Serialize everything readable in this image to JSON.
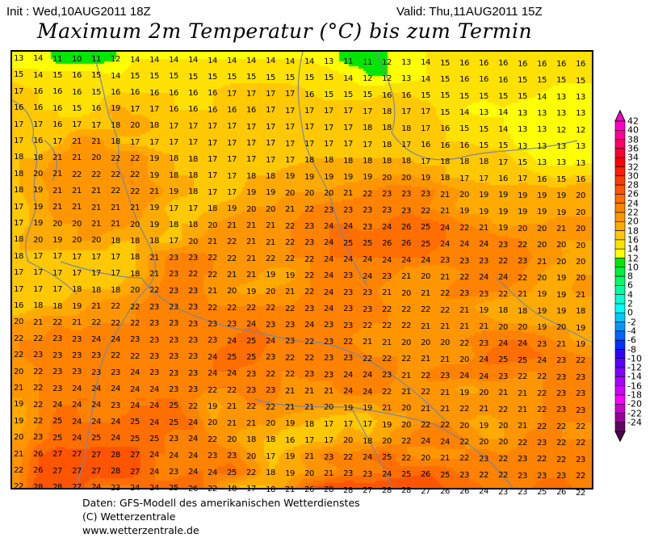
{
  "header": {
    "init": "Init : Wed,10AUG2011 18Z",
    "valid": "Valid: Thu,11AUG2011 15Z",
    "title": "Maximum 2m Temperatur (°C) bis zum Termin"
  },
  "map": {
    "field": "Maximum 2m temperature (°C)",
    "coastline_color": "#7a86a0",
    "grid_values": [
      [
        13,
        14,
        11,
        10,
        11,
        12,
        14,
        14,
        14,
        14,
        14,
        14,
        14,
        14,
        14,
        14,
        13,
        11,
        11,
        12,
        13,
        14,
        15,
        16,
        16,
        16,
        16,
        16,
        16,
        16
      ],
      [
        15,
        14,
        15,
        16,
        15,
        14,
        15,
        15,
        15,
        15,
        15,
        15,
        15,
        15,
        15,
        15,
        15,
        14,
        12,
        12,
        13,
        14,
        15,
        16,
        16,
        16,
        15,
        15,
        15,
        15
      ],
      [
        17,
        16,
        16,
        16,
        15,
        16,
        16,
        16,
        16,
        16,
        16,
        17,
        17,
        17,
        17,
        16,
        15,
        15,
        15,
        16,
        16,
        15,
        15,
        15,
        15,
        15,
        15,
        14,
        13,
        13
      ],
      [
        16,
        16,
        16,
        15,
        16,
        19,
        17,
        17,
        16,
        16,
        16,
        16,
        16,
        17,
        17,
        17,
        17,
        17,
        17,
        18,
        17,
        17,
        15,
        14,
        13,
        14,
        13,
        13,
        13,
        13
      ],
      [
        17,
        17,
        16,
        17,
        17,
        18,
        20,
        18,
        17,
        17,
        17,
        17,
        17,
        17,
        17,
        17,
        17,
        17,
        18,
        18,
        18,
        17,
        16,
        15,
        15,
        14,
        13,
        13,
        12,
        12
      ],
      [
        17,
        16,
        17,
        21,
        21,
        18,
        17,
        17,
        17,
        17,
        17,
        17,
        17,
        17,
        17,
        17,
        17,
        17,
        17,
        18,
        17,
        16,
        16,
        16,
        15,
        15,
        13,
        13,
        13,
        13
      ],
      [
        18,
        18,
        21,
        21,
        20,
        22,
        22,
        19,
        18,
        18,
        17,
        17,
        17,
        17,
        17,
        18,
        18,
        18,
        18,
        18,
        18,
        17,
        18,
        18,
        18,
        17,
        15,
        13,
        13,
        13
      ],
      [
        18,
        20,
        21,
        22,
        22,
        22,
        22,
        19,
        18,
        18,
        17,
        17,
        18,
        18,
        19,
        19,
        19,
        19,
        19,
        20,
        20,
        19,
        18,
        17,
        17,
        16,
        17,
        16,
        15,
        16
      ],
      [
        18,
        19,
        21,
        21,
        21,
        22,
        22,
        21,
        19,
        18,
        17,
        17,
        19,
        19,
        20,
        20,
        20,
        21,
        22,
        23,
        23,
        23,
        21,
        20,
        19,
        19,
        19,
        19,
        19,
        20
      ],
      [
        17,
        19,
        21,
        21,
        21,
        21,
        21,
        19,
        17,
        17,
        18,
        19,
        20,
        20,
        21,
        22,
        23,
        23,
        23,
        23,
        23,
        22,
        21,
        19,
        19,
        19,
        19,
        19,
        19,
        20
      ],
      [
        17,
        19,
        20,
        20,
        21,
        21,
        20,
        19,
        18,
        18,
        20,
        21,
        21,
        21,
        22,
        23,
        24,
        24,
        23,
        24,
        26,
        25,
        24,
        22,
        21,
        19,
        20,
        20,
        21,
        20
      ],
      [
        18,
        20,
        19,
        20,
        20,
        18,
        18,
        18,
        17,
        20,
        21,
        22,
        21,
        21,
        22,
        23,
        24,
        25,
        25,
        26,
        26,
        25,
        24,
        24,
        24,
        23,
        22,
        20,
        20,
        20
      ],
      [
        18,
        17,
        17,
        17,
        17,
        17,
        18,
        21,
        23,
        23,
        22,
        22,
        21,
        22,
        22,
        22,
        24,
        24,
        24,
        24,
        24,
        24,
        23,
        23,
        23,
        22,
        23,
        21,
        20,
        20
      ],
      [
        17,
        17,
        17,
        17,
        17,
        17,
        18,
        21,
        23,
        22,
        22,
        21,
        21,
        19,
        19,
        22,
        24,
        23,
        24,
        23,
        21,
        20,
        21,
        22,
        24,
        24,
        22,
        20,
        19,
        20
      ],
      [
        17,
        17,
        17,
        18,
        18,
        18,
        20,
        22,
        23,
        23,
        21,
        20,
        19,
        20,
        21,
        22,
        24,
        23,
        23,
        21,
        20,
        21,
        22,
        23,
        23,
        22,
        21,
        19,
        19,
        21
      ],
      [
        16,
        18,
        18,
        19,
        21,
        22,
        22,
        23,
        23,
        23,
        22,
        22,
        22,
        22,
        22,
        23,
        24,
        23,
        23,
        22,
        22,
        22,
        22,
        21,
        19,
        18,
        18,
        19,
        19,
        18
      ],
      [
        20,
        21,
        22,
        21,
        22,
        22,
        22,
        23,
        23,
        23,
        23,
        23,
        24,
        23,
        23,
        24,
        23,
        23,
        22,
        22,
        22,
        21,
        21,
        21,
        21,
        20,
        20,
        19,
        20,
        19
      ],
      [
        22,
        22,
        23,
        23,
        24,
        24,
        23,
        23,
        23,
        23,
        23,
        24,
        25,
        24,
        23,
        22,
        23,
        22,
        21,
        21,
        20,
        20,
        20,
        22,
        23,
        24,
        24,
        23,
        21,
        19
      ],
      [
        22,
        23,
        23,
        23,
        23,
        22,
        22,
        23,
        23,
        23,
        24,
        25,
        25,
        23,
        22,
        22,
        23,
        23,
        22,
        22,
        22,
        21,
        21,
        20,
        24,
        25,
        25,
        24,
        23,
        22
      ],
      [
        20,
        22,
        23,
        23,
        23,
        23,
        24,
        23,
        23,
        23,
        24,
        24,
        23,
        22,
        22,
        23,
        23,
        24,
        24,
        23,
        21,
        22,
        23,
        24,
        24,
        23,
        22,
        22,
        23,
        23
      ],
      [
        21,
        22,
        23,
        24,
        24,
        24,
        24,
        24,
        23,
        23,
        22,
        22,
        23,
        23,
        21,
        21,
        21,
        24,
        24,
        22,
        21,
        22,
        21,
        19,
        20,
        21,
        21,
        22,
        23,
        23
      ],
      [
        19,
        22,
        24,
        24,
        24,
        23,
        24,
        24,
        25,
        22,
        19,
        21,
        22,
        22,
        21,
        21,
        20,
        19,
        19,
        21,
        20,
        21,
        21,
        22,
        21,
        22,
        21,
        22,
        23,
        23
      ],
      [
        19,
        22,
        25,
        24,
        24,
        24,
        25,
        24,
        25,
        24,
        20,
        21,
        21,
        20,
        19,
        18,
        17,
        17,
        17,
        19,
        20,
        22,
        22,
        20,
        19,
        20,
        21,
        22,
        22,
        22
      ],
      [
        20,
        23,
        25,
        24,
        25,
        24,
        25,
        25,
        23,
        24,
        22,
        20,
        18,
        18,
        16,
        17,
        17,
        20,
        18,
        20,
        22,
        24,
        24,
        22,
        20,
        20,
        22,
        23,
        22,
        22
      ],
      [
        21,
        26,
        27,
        27,
        27,
        28,
        27,
        24,
        24,
        24,
        23,
        23,
        20,
        17,
        19,
        21,
        23,
        22,
        24,
        25,
        22,
        20,
        21,
        22,
        23,
        22,
        23,
        22,
        22,
        23
      ],
      [
        22,
        26,
        27,
        27,
        27,
        28,
        27,
        24,
        23,
        24,
        24,
        25,
        22,
        18,
        19,
        20,
        21,
        23,
        23,
        24,
        25,
        26,
        25,
        23,
        22,
        22,
        23,
        23,
        23,
        22
      ],
      [
        22,
        28,
        28,
        27,
        24,
        23,
        24,
        24,
        25,
        26,
        22,
        18,
        17,
        18,
        21,
        26,
        28,
        28,
        27,
        28,
        28,
        27,
        26,
        26,
        24,
        23,
        23,
        25,
        26,
        22
      ]
    ]
  },
  "legend": {
    "labels": [
      "42",
      "40",
      "38",
      "36",
      "34",
      "32",
      "30",
      "28",
      "26",
      "24",
      "22",
      "20",
      "18",
      "16",
      "14",
      "12",
      "10",
      "8",
      "6",
      "4",
      "2",
      "0",
      "-2",
      "-4",
      "-6",
      "-8",
      "-10",
      "-12",
      "-14",
      "-16",
      "-18",
      "-20",
      "-22",
      "-24"
    ],
    "colors": [
      "#ff00c8",
      "#ff0096",
      "#ff0064",
      "#ff0032",
      "#ff0000",
      "#ff1e00",
      "#ff3c00",
      "#ff5500",
      "#ff6e00",
      "#ff8200",
      "#ff9600",
      "#ffaa00",
      "#ffc800",
      "#ffe100",
      "#ffff00",
      "#00e600",
      "#00f03c",
      "#00fa6e",
      "#00ffa0",
      "#00ffd2",
      "#00ffff",
      "#00c8ff",
      "#0096ff",
      "#0064ff",
      "#0032ff",
      "#3200ff",
      "#5a00ff",
      "#8200ff",
      "#aa00ff",
      "#d200ff",
      "#ff00ff",
      "#c800c8",
      "#960096",
      "#640064"
    ],
    "top_arrow_color": "#ff00c8",
    "bottom_arrow_color": "#500050"
  },
  "footer": {
    "line1": "Daten: GFS-Modell des amerikanischen Wetterdienstes",
    "line2": "(C) Wetterzentrale",
    "line3": "www.wetterzentrale.de"
  }
}
